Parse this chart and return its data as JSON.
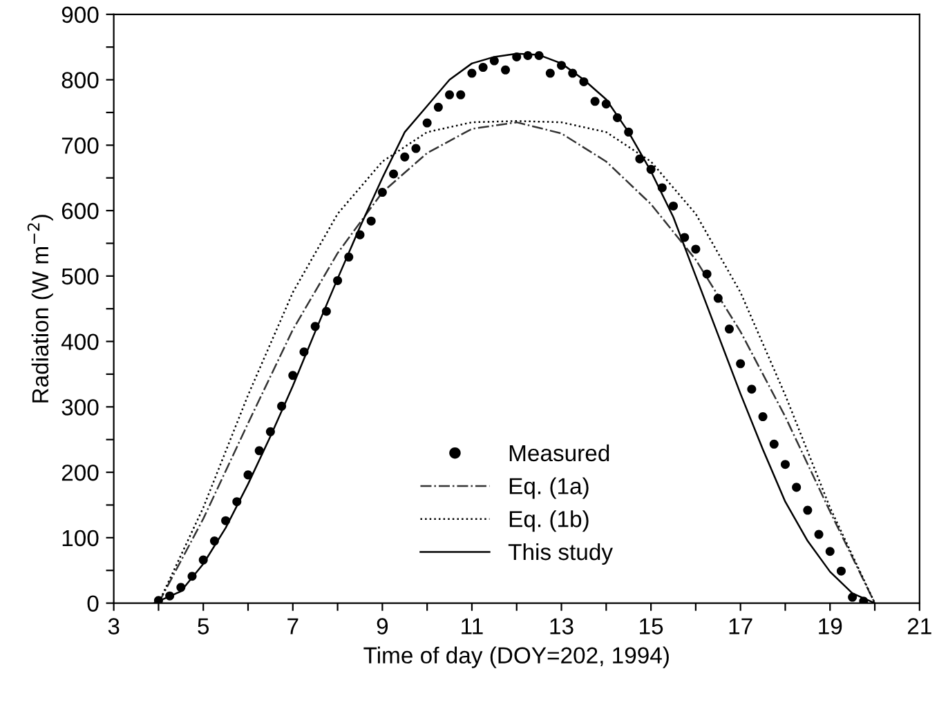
{
  "chart_data": {
    "type": "line",
    "xlabel": "Time of day (DOY=202, 1994)",
    "ylabel": "Radiation (W m$^{−2}$)",
    "xlim": [
      3,
      21
    ],
    "xticks": [
      3,
      {
        "value": 4,
        "label": null
      },
      5,
      {
        "value": 6,
        "label": null
      },
      7,
      {
        "value": 8,
        "label": null
      },
      9,
      {
        "value": 10,
        "label": null
      },
      11,
      {
        "value": 12,
        "label": null
      },
      13,
      {
        "value": 14,
        "label": null
      },
      15,
      {
        "value": 16,
        "label": null
      },
      17,
      {
        "value": 18,
        "label": null
      },
      19,
      {
        "value": 20,
        "label": null
      },
      21
    ],
    "ylim": [
      0,
      900
    ],
    "yticks": [
      0,
      {
        "value": 50,
        "label": null
      },
      100,
      {
        "value": 150,
        "label": null
      },
      200,
      {
        "value": 250,
        "label": null
      },
      300,
      {
        "value": 350,
        "label": null
      },
      400,
      {
        "value": 450,
        "label": null
      },
      500,
      {
        "value": 550,
        "label": null
      },
      600,
      {
        "value": 650,
        "label": null
      },
      700,
      {
        "value": 750,
        "label": null
      },
      800,
      {
        "value": 850,
        "label": null
      },
      900
    ],
    "grid": false,
    "legend": "bottom",
    "series": [
      {
        "name": "Measured",
        "type": "scatter",
        "marker": "circle",
        "color": "#000000",
        "x": [
          4,
          4.25,
          4.5,
          4.75,
          5,
          5.25,
          5.5,
          5.75,
          6,
          6.25,
          6.5,
          6.75,
          7,
          7.25,
          7.5,
          7.75,
          8,
          8.25,
          8.5,
          8.75,
          9,
          9.25,
          9.5,
          9.75,
          10,
          10.25,
          10.5,
          10.75,
          11,
          11.25,
          11.5,
          11.75,
          12,
          12.25,
          12.5,
          12.75,
          13,
          13.25,
          13.5,
          13.75,
          14,
          14.25,
          14.5,
          14.75,
          15,
          15.25,
          15.5,
          15.75,
          16,
          16.25,
          16.5,
          16.75,
          17,
          17.25,
          17.5,
          17.75,
          18,
          18.25,
          18.5,
          18.75,
          19,
          19.25,
          19.5,
          19.75
        ],
        "values": [
          4,
          11,
          24,
          41,
          66,
          95,
          126,
          155,
          196,
          233,
          262,
          301,
          348,
          384,
          423,
          446,
          493,
          529,
          563,
          584,
          628,
          656,
          682,
          695,
          734,
          758,
          777,
          777,
          810,
          819,
          829,
          815,
          835,
          837,
          837,
          810,
          822,
          810,
          797,
          767,
          763,
          742,
          720,
          679,
          663,
          635,
          607,
          559,
          541,
          503,
          466,
          419,
          366,
          327,
          285,
          243,
          212,
          177,
          142,
          105,
          79,
          49,
          9,
          3
        ]
      },
      {
        "name": "Eq. (1a)",
        "line_style": "dashdot",
        "color": "#333333",
        "x": [
          4,
          5,
          6,
          7,
          8,
          9,
          10,
          11,
          12,
          13,
          14,
          15,
          16,
          17,
          18,
          19,
          20
        ],
        "values": [
          0,
          129,
          275,
          418,
          535,
          628,
          688,
          725,
          735,
          718,
          675,
          610,
          525,
          415,
          285,
          140,
          0
        ]
      },
      {
        "name": "Eq. (1b)",
        "line_style": "dotted",
        "color": "#000000",
        "x": [
          4,
          5,
          6,
          7,
          8,
          9,
          10,
          11,
          12,
          13,
          14,
          15,
          16,
          17,
          18,
          19,
          20
        ],
        "values": [
          0,
          146,
          318,
          475,
          595,
          675,
          720,
          735,
          737,
          735,
          720,
          675,
          595,
          475,
          318,
          146,
          0
        ]
      },
      {
        "name": "This study",
        "line_style": "solid",
        "color": "#000000",
        "x": [
          3.9,
          4.5,
          5,
          5.5,
          6,
          6.5,
          7,
          7.5,
          8,
          8.5,
          9,
          9.5,
          10,
          10.5,
          11,
          11.5,
          12,
          12.5,
          13,
          13.5,
          14,
          14.5,
          15,
          15.5,
          16,
          16.5,
          17,
          17.5,
          18,
          18.5,
          19,
          19.5,
          20
        ],
        "values": [
          0,
          18,
          60,
          115,
          182,
          255,
          332,
          415,
          496,
          575,
          650,
          720,
          760,
          800,
          825,
          835,
          840,
          838,
          825,
          800,
          770,
          720,
          660,
          590,
          500,
          410,
          320,
          235,
          155,
          95,
          48,
          15,
          0
        ]
      }
    ]
  }
}
